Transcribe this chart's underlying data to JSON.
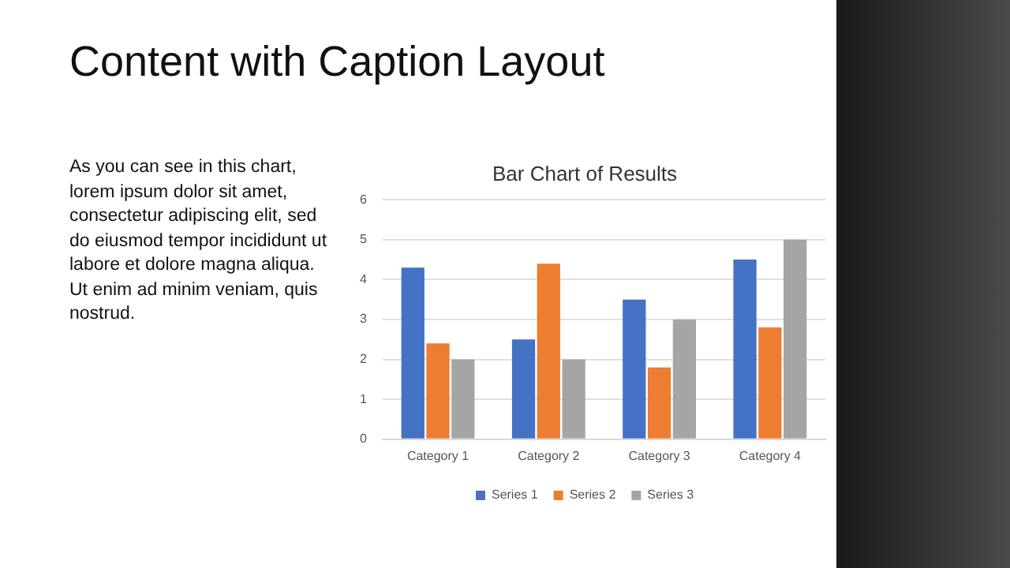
{
  "chart_data": {
    "type": "bar",
    "title": "Content with Caption Layout",
    "subtitle": "Bar Chart of Results",
    "annotations": [
      "As you can see in this chart, lorem ipsum dolor sit amet, consectetur adipiscing elit, sed do eiusmod tempor incididunt ut labore et dolore magna aliqua. Ut enim ad minim veniam, quis nostrud."
    ],
    "categories": [
      "Category 1",
      "Category 2",
      "Category 3",
      "Category 4"
    ],
    "series": [
      {
        "name": "Series 1",
        "color": "#4472c4",
        "values": [
          4.3,
          2.5,
          3.5,
          4.5
        ]
      },
      {
        "name": "Series 2",
        "color": "#ed7d31",
        "values": [
          2.4,
          4.4,
          1.8,
          2.8
        ]
      },
      {
        "name": "Series 3",
        "color": "#a5a5a5",
        "values": [
          2,
          2,
          3,
          5
        ]
      }
    ],
    "ylim": [
      0,
      6
    ],
    "yticks": [
      0,
      1,
      2,
      3,
      4,
      5,
      6
    ],
    "grid": "y",
    "legend": "bottom"
  }
}
